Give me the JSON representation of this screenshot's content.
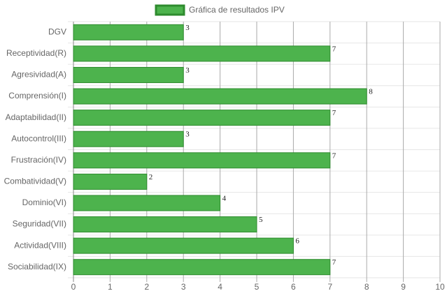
{
  "chart_data": {
    "type": "bar",
    "orientation": "horizontal",
    "legend_label": "Gráfica de resultados IPV",
    "categories": [
      "DGV",
      "Receptividad(R)",
      "Agresividad(A)",
      "Comprensión(I)",
      "Adaptabilidad(II)",
      "Autocontrol(III)",
      "Frustración(IV)",
      "Combatividad(V)",
      "Dominio(VI)",
      "Seguridad(VII)",
      "Actividad(VIII)",
      "Sociabilidad(IX)"
    ],
    "values": [
      3,
      7,
      3,
      8,
      7,
      3,
      7,
      2,
      4,
      5,
      6,
      7
    ],
    "color": "#4db34d",
    "border_color": "#2e8b2e",
    "xlim": [
      0,
      10
    ],
    "xticks": [
      0,
      1,
      2,
      3,
      4,
      5,
      6,
      7,
      8,
      9,
      10
    ],
    "grid": true,
    "legend": "top"
  }
}
